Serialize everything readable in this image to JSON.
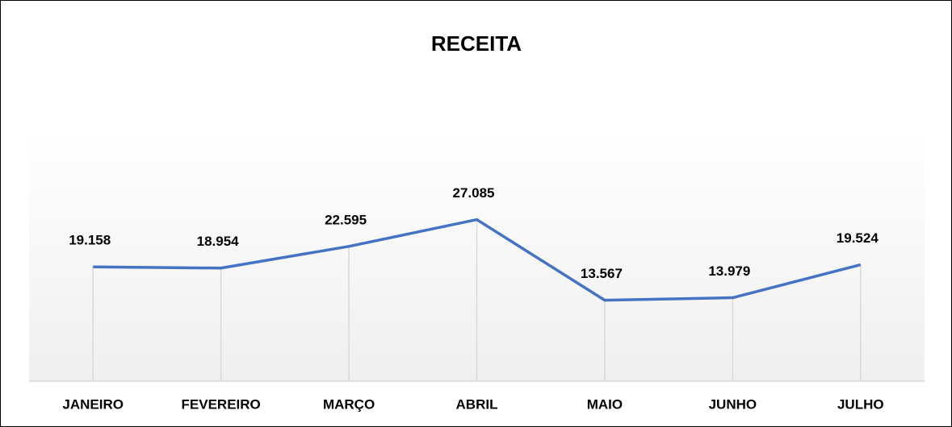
{
  "chart_data": {
    "type": "line",
    "title": "RECEITA",
    "categories": [
      "JANEIRO",
      "FEVEREIRO",
      "MARÇO",
      "ABRIL",
      "MAIO",
      "JUNHO",
      "JULHO"
    ],
    "values": [
      19158,
      18954,
      22595,
      27085,
      13567,
      13979,
      19524
    ],
    "value_labels": [
      "19.158",
      "18.954",
      "22.595",
      "27.085",
      "13.567",
      "13.979",
      "19.524"
    ],
    "color": "#4472c4",
    "ylim": [
      0,
      40000
    ]
  }
}
